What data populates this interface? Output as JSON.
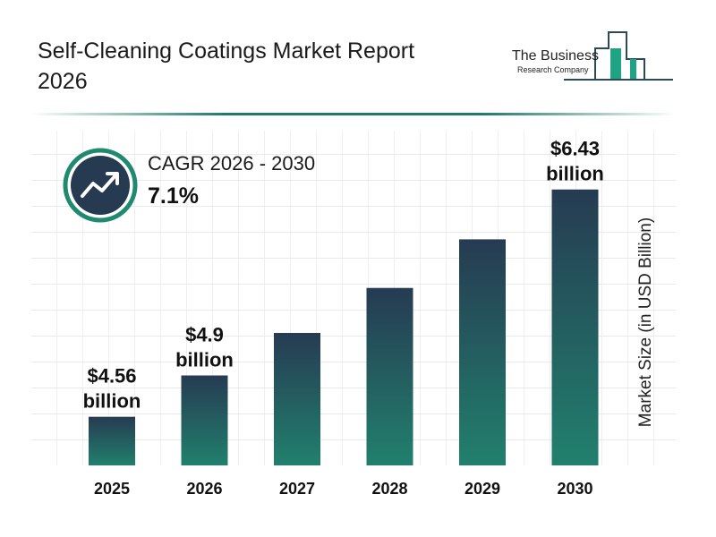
{
  "header": {
    "title": "Self-Cleaning Coatings Market Report 2026"
  },
  "logo": {
    "line1": "The Business",
    "line2": "Research Company"
  },
  "cagr": {
    "label": "CAGR 2026 - 2030",
    "value": "7.1%",
    "icon": "trending-up-icon"
  },
  "colors": {
    "bar_top": "#263b52",
    "bar_bottom": "#21806d",
    "accent": "#1f8a70",
    "icon_bg": "#263b52"
  },
  "chart_data": {
    "type": "bar",
    "title": "Self-Cleaning Coatings Market Report 2026",
    "categories": [
      "2025",
      "2026",
      "2027",
      "2028",
      "2029",
      "2030"
    ],
    "values": [
      4.56,
      4.9,
      5.25,
      5.62,
      6.02,
      6.43
    ],
    "data_labels": [
      {
        "index": 0,
        "line1": "$4.56",
        "line2": "billion"
      },
      {
        "index": 1,
        "line1": "$4.9",
        "line2": "billion"
      },
      {
        "index": 5,
        "line1": "$6.43",
        "line2": "billion"
      }
    ],
    "xlabel": "",
    "ylabel": "Market Size (in USD Billion)",
    "grid": true
  }
}
